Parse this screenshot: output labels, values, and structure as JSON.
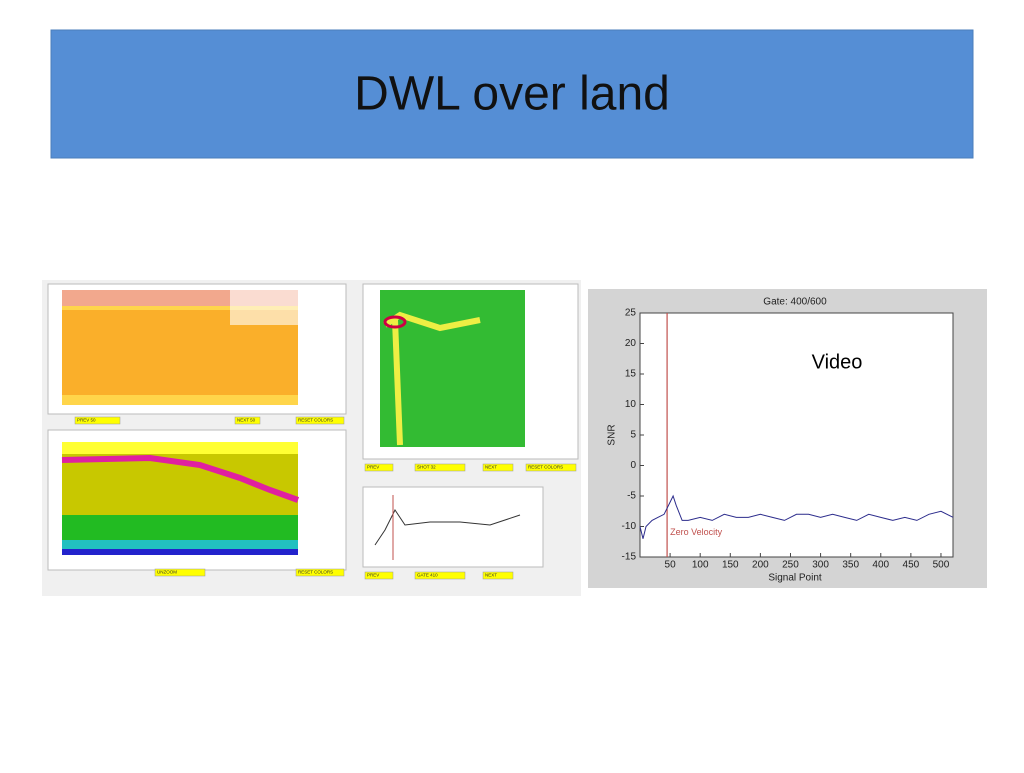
{
  "title": "DWL over land",
  "left_panel": {
    "buttons": [
      "PREV 50",
      "NEXT 50",
      "RESET COLORS",
      "UNZOOM",
      "RESET COLORS",
      "PREV",
      "SHOT 32",
      "NEXT",
      "RESET COLORS",
      "PREV",
      "GATE 410",
      "NEXT"
    ]
  },
  "chart_data": {
    "type": "line",
    "title": "Gate: 400/600",
    "x_label": "Signal Point",
    "y_label": "SNR",
    "annotation": "Video",
    "reference_line": {
      "x": 45,
      "label": "Zero Velocity",
      "color": "#c0504d"
    },
    "xlim": [
      0,
      520
    ],
    "ylim": [
      -15,
      25
    ],
    "xticks": [
      50,
      100,
      150,
      200,
      250,
      300,
      350,
      400,
      450,
      500
    ],
    "yticks": [
      -15,
      -10,
      -5,
      0,
      5,
      10,
      15,
      20,
      25
    ],
    "x": [
      0,
      5,
      10,
      20,
      30,
      40,
      50,
      55,
      60,
      70,
      80,
      100,
      120,
      140,
      160,
      180,
      200,
      220,
      240,
      260,
      280,
      300,
      320,
      340,
      360,
      380,
      400,
      420,
      440,
      460,
      480,
      500,
      520
    ],
    "series": [
      {
        "color": "#2c2c8c",
        "values": [
          -10,
          -12,
          -10,
          -9,
          -8.5,
          -8,
          -6,
          -5,
          -6.5,
          -9,
          -9,
          -8.5,
          -9,
          -8,
          -8.5,
          -8.5,
          -8,
          -8.5,
          -9,
          -8,
          -8,
          -8.5,
          -8,
          -8.5,
          -9,
          -8,
          -8.5,
          -9,
          -8.5,
          -9,
          -8,
          -7.5,
          -8.5
        ]
      }
    ]
  }
}
